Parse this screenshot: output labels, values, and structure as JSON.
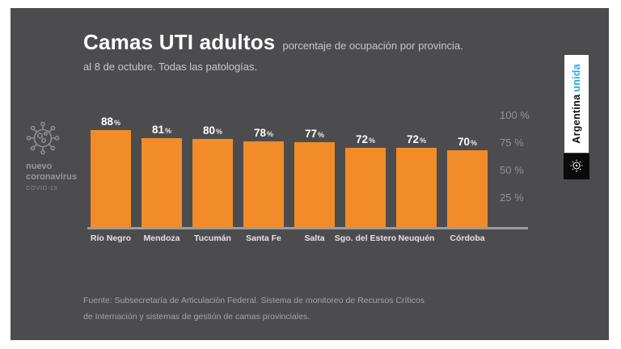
{
  "header": {
    "title": "Camas UTI adultos",
    "subtitle": "porcentaje de ocupación por provincia.",
    "subtitle2": "al 8 de octubre. Todas las patologías."
  },
  "left_badge": {
    "line1": "nuevo",
    "line2": "coronavirus",
    "line3": "COVID-19"
  },
  "right_badge": {
    "brand_black": "Argentina",
    "brand_cyan": "unida"
  },
  "chart_data": {
    "type": "bar",
    "title": "Camas UTI adultos",
    "subtitle": "porcentaje de ocupación por provincia. al 8 de octubre. Todas las patologías.",
    "categories": [
      "Río Negro",
      "Mendoza",
      "Tucumán",
      "Santa Fe",
      "Salta",
      "Sgo. del Estero",
      "Neuquén",
      "Córdoba"
    ],
    "values": [
      88,
      81,
      80,
      78,
      77,
      72,
      72,
      70
    ],
    "unit": "%",
    "ytick_values": [
      100,
      75,
      50,
      25
    ],
    "ytick_suffix": " %",
    "ylim": [
      0,
      100
    ],
    "grid": false,
    "legend": "none",
    "bar_color": "#F28C28"
  },
  "footer": {
    "line1": "Fuente: Subsecretaría de Articulación Federal. Sistema de monitoreo de Recursos Críticos",
    "line2": "de Internación  y sistemas de gestión de camas provinciales."
  },
  "colors": {
    "panel_bg": "#4C4C4E",
    "bar_orange": "#F28C28",
    "accent_cyan": "#29ABE2",
    "text_white": "#FFFFFF",
    "text_gray": "#A4A4A6"
  }
}
